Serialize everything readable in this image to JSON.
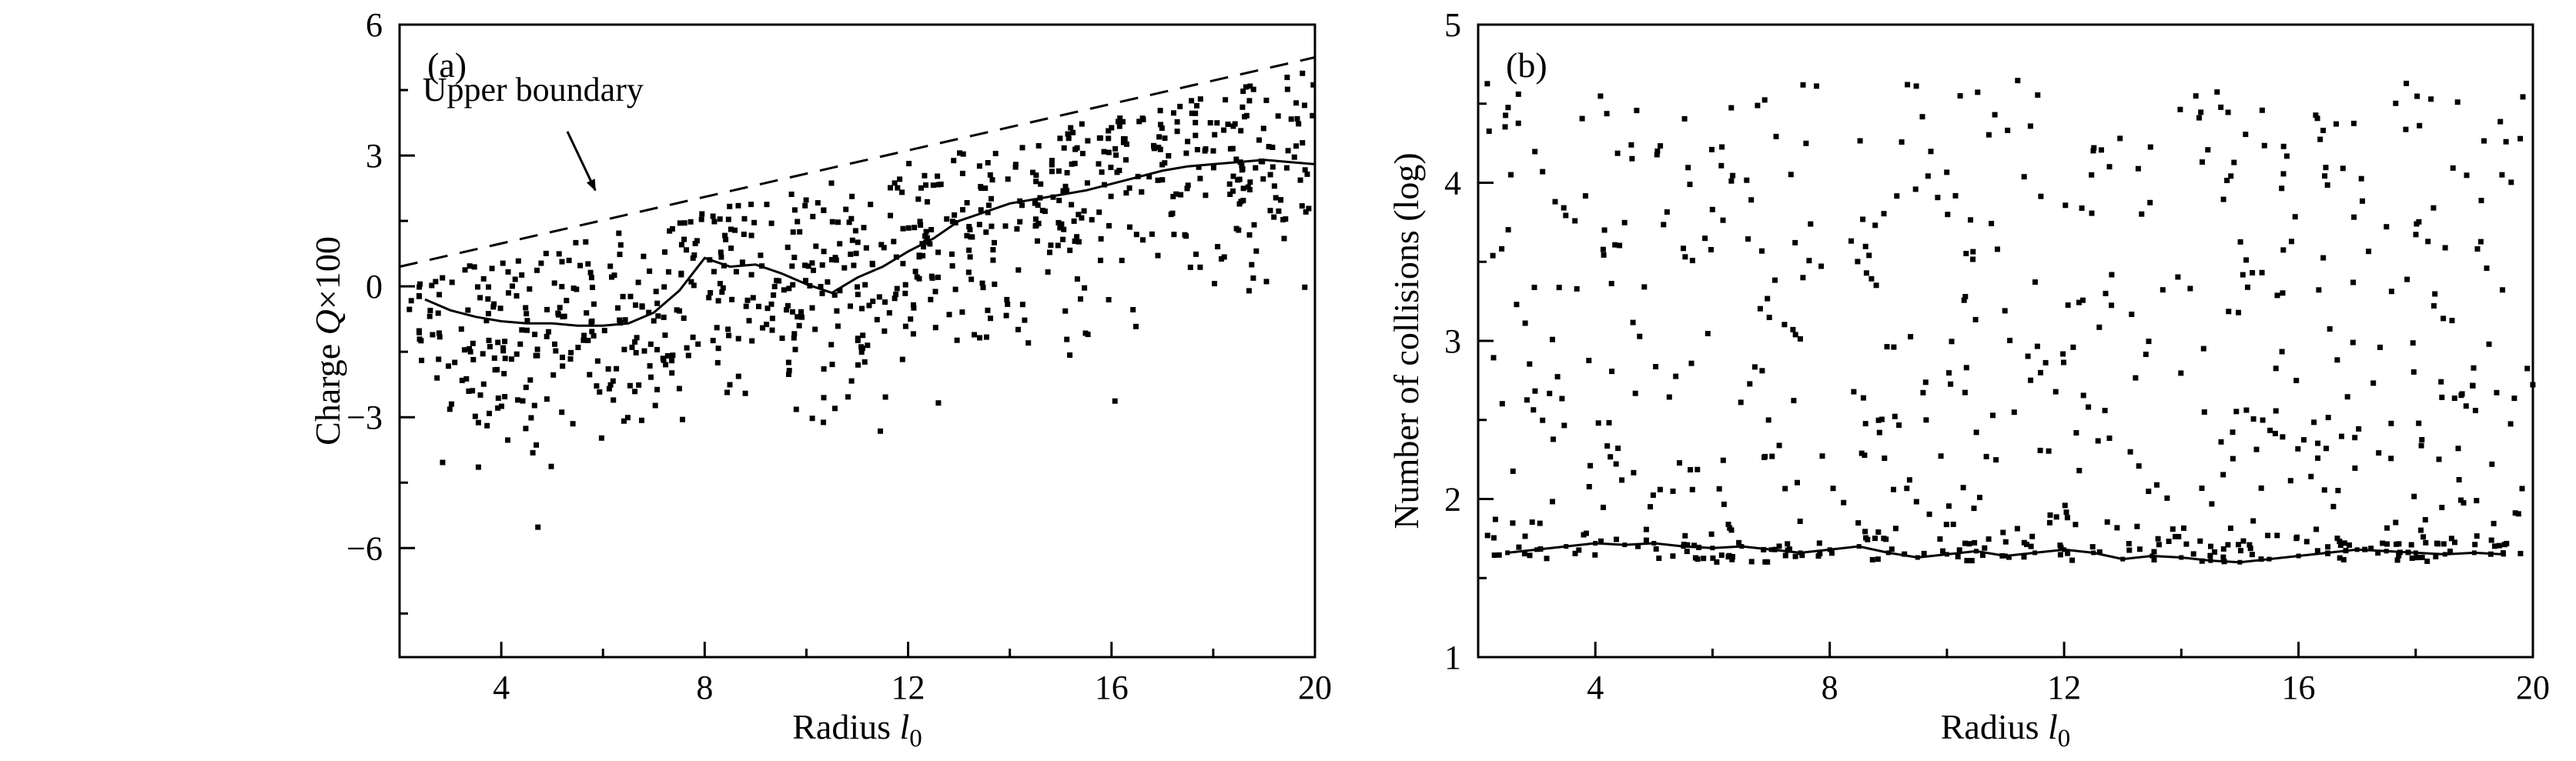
{
  "figure": {
    "background": "#ffffff",
    "ink": "#000000"
  },
  "chart_data": [
    {
      "type": "scatter",
      "panel_label": "(a)",
      "xlabel": "Radius l0",
      "ylabel": "Charge Q×100",
      "xlabel_parts": [
        {
          "t": "Radius "
        },
        {
          "t": "l",
          "i": true
        },
        {
          "t": "0",
          "sub": true
        }
      ],
      "ylabel_parts": [
        {
          "t": "Charge "
        },
        {
          "t": "Q",
          "i": true
        },
        {
          "t": "×100"
        }
      ],
      "xlim": [
        2,
        20
      ],
      "ylim": [
        -8.5,
        6
      ],
      "x_ticks": [
        4,
        8,
        12,
        16,
        20
      ],
      "x_tick_labels": [
        "4",
        "8",
        "12",
        "16",
        "20"
      ],
      "x_minor_ticks": [
        6,
        10,
        14,
        18
      ],
      "y_ticks": [
        -6,
        -3,
        0,
        3,
        6
      ],
      "y_tick_labels": [
        "−6",
        "−3",
        "0",
        "3",
        "6"
      ],
      "y_minor_ticks": [
        -7.5,
        -4.5,
        -1.5,
        1.5,
        4.5
      ],
      "grid": false,
      "legend": "none",
      "annotation": {
        "text": "Upper boundary",
        "x": 2.45,
        "y": 4.25,
        "arrow_from": [
          5.3,
          3.55
        ],
        "arrow_to": [
          5.85,
          2.2
        ]
      },
      "boundary_line": {
        "style": "dashed",
        "points": [
          [
            2,
            0.45
          ],
          [
            20,
            5.25
          ]
        ]
      },
      "mean_line": {
        "style": "solid",
        "markers": false,
        "points": [
          [
            2.5,
            -0.3
          ],
          [
            3.0,
            -0.55
          ],
          [
            3.5,
            -0.7
          ],
          [
            4.0,
            -0.8
          ],
          [
            4.5,
            -0.85
          ],
          [
            5.0,
            -0.85
          ],
          [
            5.5,
            -0.9
          ],
          [
            6.0,
            -0.9
          ],
          [
            6.5,
            -0.85
          ],
          [
            7.0,
            -0.6
          ],
          [
            7.5,
            -0.1
          ],
          [
            8.0,
            0.65
          ],
          [
            8.5,
            0.45
          ],
          [
            9.0,
            0.5
          ],
          [
            9.5,
            0.3
          ],
          [
            10.0,
            0.05
          ],
          [
            10.5,
            -0.15
          ],
          [
            11.0,
            0.2
          ],
          [
            11.5,
            0.45
          ],
          [
            12.0,
            0.8
          ],
          [
            12.5,
            1.1
          ],
          [
            13.0,
            1.5
          ],
          [
            13.5,
            1.7
          ],
          [
            14.0,
            1.9
          ],
          [
            14.5,
            2.0
          ],
          [
            15.0,
            2.1
          ],
          [
            15.5,
            2.2
          ],
          [
            16.0,
            2.35
          ],
          [
            16.5,
            2.5
          ],
          [
            17.0,
            2.65
          ],
          [
            17.5,
            2.75
          ],
          [
            18.0,
            2.8
          ],
          [
            18.5,
            2.85
          ],
          [
            19.0,
            2.9
          ],
          [
            19.5,
            2.85
          ],
          [
            20.0,
            2.8
          ]
        ]
      },
      "scatter": {
        "model": "trend_cloud",
        "marker": "square",
        "marker_size": 7,
        "n": 800,
        "seed": 20240601,
        "x_range": [
          2.15,
          20.0
        ],
        "sd": 1.45,
        "low_outlier_prob": 0.05,
        "low_outlier_mag": 2.6,
        "clip_offset": 0.3,
        "floor": -7.0
      }
    },
    {
      "type": "scatter",
      "panel_label": "(b)",
      "xlabel": "Radius l0",
      "ylabel": "Number of collisions (log)",
      "xlabel_parts": [
        {
          "t": "Radius "
        },
        {
          "t": "l",
          "i": true
        },
        {
          "t": "0",
          "sub": true
        }
      ],
      "ylabel_parts": [
        {
          "t": "Number of collisions (log)"
        }
      ],
      "xlim": [
        2,
        20
      ],
      "ylim": [
        1,
        5
      ],
      "x_ticks": [
        4,
        8,
        12,
        16,
        20
      ],
      "x_tick_labels": [
        "4",
        "8",
        "12",
        "16",
        "20"
      ],
      "x_minor_ticks": [
        6,
        10,
        14,
        18
      ],
      "y_ticks": [
        1,
        2,
        3,
        4,
        5
      ],
      "y_tick_labels": [
        "1",
        "2",
        "3",
        "4",
        "5"
      ],
      "y_minor_ticks": [
        1.5,
        2.5,
        3.5,
        4.5
      ],
      "grid": false,
      "legend": "none",
      "mean_line": {
        "style": "solid",
        "markers": true,
        "points": [
          [
            2.5,
            1.66
          ],
          [
            3.0,
            1.68
          ],
          [
            3.5,
            1.7
          ],
          [
            4.0,
            1.72
          ],
          [
            4.5,
            1.71
          ],
          [
            5.0,
            1.72
          ],
          [
            5.5,
            1.7
          ],
          [
            6.0,
            1.69
          ],
          [
            6.5,
            1.7
          ],
          [
            7.0,
            1.68
          ],
          [
            7.5,
            1.66
          ],
          [
            8.0,
            1.68
          ],
          [
            8.5,
            1.7
          ],
          [
            9.0,
            1.66
          ],
          [
            9.5,
            1.63
          ],
          [
            10.0,
            1.65
          ],
          [
            10.5,
            1.67
          ],
          [
            11.0,
            1.64
          ],
          [
            11.5,
            1.66
          ],
          [
            12.0,
            1.68
          ],
          [
            12.5,
            1.66
          ],
          [
            13.0,
            1.62
          ],
          [
            13.5,
            1.64
          ],
          [
            14.0,
            1.63
          ],
          [
            14.5,
            1.61
          ],
          [
            15.0,
            1.6
          ],
          [
            15.5,
            1.62
          ],
          [
            16.0,
            1.64
          ],
          [
            16.5,
            1.66
          ],
          [
            17.0,
            1.68
          ],
          [
            17.5,
            1.67
          ],
          [
            18.0,
            1.66
          ],
          [
            18.5,
            1.65
          ],
          [
            19.0,
            1.66
          ],
          [
            19.5,
            1.65
          ]
        ]
      },
      "scatter": {
        "model": "band_uniform",
        "marker": "square",
        "marker_size": 7,
        "n": 650,
        "seed": 8675309,
        "x_range": [
          2.15,
          20.0
        ],
        "band_prob": 0.34,
        "band_base": 1.6,
        "band_sigma": 0.16,
        "upper_min": 1.95,
        "upper_max": 4.65
      }
    }
  ]
}
